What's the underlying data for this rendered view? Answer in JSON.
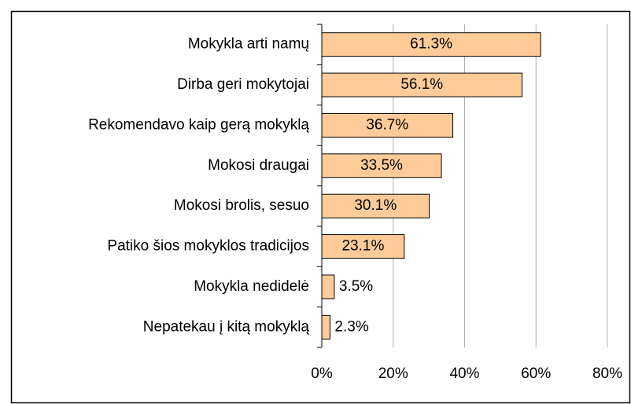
{
  "chart_data": {
    "type": "bar",
    "orientation": "horizontal",
    "categories": [
      "Mokykla arti namų",
      "Dirba geri mokytojai",
      "Rekomendavo kaip gerą mokyklą",
      "Mokosi draugai",
      "Mokosi brolis, sesuo",
      "Patiko šios mokyklos tradicijos",
      "Mokykla nedidelė",
      "Nepatekau į kitą mokyklą"
    ],
    "values": [
      61.3,
      56.1,
      36.7,
      33.5,
      30.1,
      23.1,
      3.5,
      2.3
    ],
    "value_labels": [
      "61.3%",
      "56.1%",
      "36.7%",
      "33.5%",
      "30.1%",
      "23.1%",
      "3.5%",
      "2.3%"
    ],
    "color": "#ffcc99",
    "xlim": [
      0,
      80
    ],
    "xticks": [
      {
        "value": 0,
        "label": "0%"
      },
      {
        "value": 20,
        "label": "20%"
      },
      {
        "value": 40,
        "label": "40%"
      },
      {
        "value": 60,
        "label": "60%"
      },
      {
        "value": 80,
        "label": "80%"
      }
    ],
    "grid": true
  }
}
